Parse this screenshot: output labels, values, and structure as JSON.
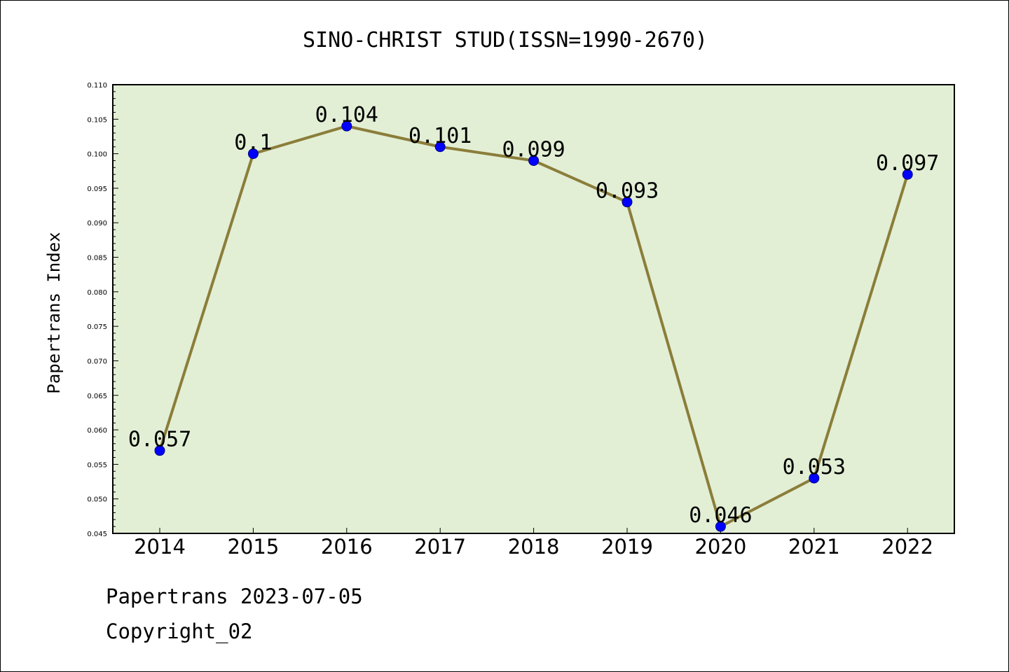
{
  "chart_data": {
    "type": "line",
    "title": "SINO-CHRIST STUD(ISSN=1990-2670)",
    "xlabel": "",
    "ylabel": "Papertrans Index",
    "categories": [
      "2014",
      "2015",
      "2016",
      "2017",
      "2018",
      "2019",
      "2020",
      "2021",
      "2022"
    ],
    "series": [
      {
        "values": [
          0.057,
          0.1,
          0.104,
          0.101,
          0.099,
          0.093,
          0.046,
          0.053,
          0.097
        ],
        "data_labels": [
          "0.057",
          "0.1",
          "0.104",
          "0.101",
          "0.099",
          "0.093",
          "0.046",
          "0.053",
          "0.097"
        ]
      }
    ],
    "ylim": [
      0.045,
      0.11
    ],
    "yticks": [
      "0.045",
      "0.050",
      "0.055",
      "0.060",
      "0.065",
      "0.070",
      "0.075",
      "0.080",
      "0.085",
      "0.090",
      "0.095",
      "0.100",
      "0.105",
      "0.110"
    ],
    "grid": false,
    "legend": "none",
    "colors": {
      "plot_background": "#e2efd5",
      "line": "#8b7d3a",
      "marker_fill": "#0000ff",
      "marker_edge": "#000080"
    }
  },
  "footer": {
    "line1": "Papertrans 2023-07-05",
    "line2": "Copyright_02"
  }
}
